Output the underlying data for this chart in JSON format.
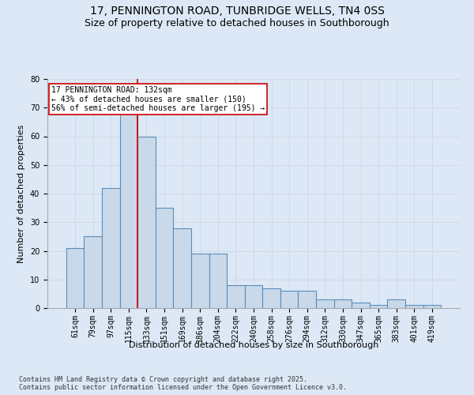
{
  "title_line1": "17, PENNINGTON ROAD, TUNBRIDGE WELLS, TN4 0SS",
  "title_line2": "Size of property relative to detached houses in Southborough",
  "xlabel": "Distribution of detached houses by size in Southborough",
  "ylabel": "Number of detached properties",
  "categories": [
    "61sqm",
    "79sqm",
    "97sqm",
    "115sqm",
    "133sqm",
    "151sqm",
    "169sqm",
    "186sqm",
    "204sqm",
    "222sqm",
    "240sqm",
    "258sqm",
    "276sqm",
    "294sqm",
    "312sqm",
    "330sqm",
    "347sqm",
    "365sqm",
    "383sqm",
    "401sqm",
    "419sqm"
  ],
  "values": [
    21,
    25,
    42,
    68,
    60,
    35,
    28,
    19,
    19,
    8,
    8,
    7,
    6,
    6,
    3,
    3,
    2,
    1,
    3,
    1,
    1
  ],
  "bar_color": "#c9d9ea",
  "bar_edge_color": "#5b8db8",
  "bar_linewidth": 0.8,
  "vline_color": "#cc0000",
  "vline_x": 3.5,
  "annotation_text": "17 PENNINGTON ROAD: 132sqm\n← 43% of detached houses are smaller (150)\n56% of semi-detached houses are larger (195) →",
  "annotation_box_color": "#ffffff",
  "annotation_box_edge": "#cc0000",
  "ylim": [
    0,
    80
  ],
  "yticks": [
    0,
    10,
    20,
    30,
    40,
    50,
    60,
    70,
    80
  ],
  "grid_color": "#d0d8e8",
  "background_color": "#dce8f5",
  "plot_bg_color": "#dce8f5",
  "footer_text": "Contains HM Land Registry data © Crown copyright and database right 2025.\nContains public sector information licensed under the Open Government Licence v3.0.",
  "title_fontsize": 10,
  "subtitle_fontsize": 9,
  "tick_fontsize": 7,
  "ylabel_fontsize": 8,
  "xlabel_fontsize": 8,
  "annotation_fontsize": 7,
  "footer_fontsize": 6
}
